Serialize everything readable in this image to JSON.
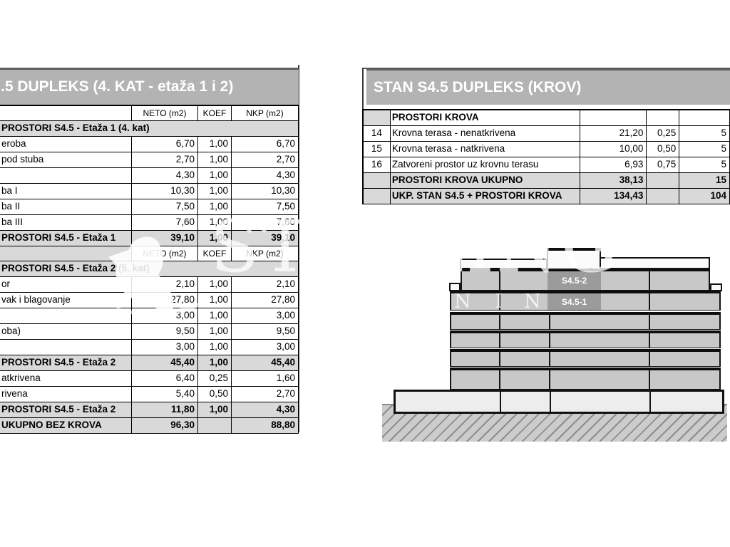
{
  "colors": {
    "title_bar_bg": "#b3b3b3",
    "title_text": "#ffffff",
    "row_gray": "#d9d9d9",
    "table_border": "#000000",
    "band_fill": "#c8c8c8",
    "unit_cell_fill": "#9b9b9b",
    "slab_fill": "#ededed",
    "watermark_white": "#ffffff"
  },
  "watermark": {
    "line1": "STARLING",
    "line2_letters": [
      "N",
      "I",
      "N"
    ],
    "logo": "bird-silhouette"
  },
  "left_table": {
    "title": ".5 DUPLEKS (4. KAT - etaža 1 i 2)",
    "rows": [
      {
        "t": "header",
        "c1": "",
        "c2": "NETO (m2)",
        "c3": "KOEF",
        "c4": "NKP (m2)"
      },
      {
        "t": "section",
        "label": "PROSTORI S4.5 - Etaža 1 (4. kat)"
      },
      {
        "t": "data",
        "label": "eroba",
        "neto": "6,70",
        "koef": "1,00",
        "nkp": "6,70"
      },
      {
        "t": "data",
        "label": "pod stuba",
        "neto": "2,70",
        "koef": "1,00",
        "nkp": "2,70"
      },
      {
        "t": "data",
        "label": "",
        "neto": "4,30",
        "koef": "1,00",
        "nkp": "4,30"
      },
      {
        "t": "data",
        "label": "ba I",
        "neto": "10,30",
        "koef": "1,00",
        "nkp": "10,30"
      },
      {
        "t": "data",
        "label": "ba II",
        "neto": "7,50",
        "koef": "1,00",
        "nkp": "7,50"
      },
      {
        "t": "data",
        "label": "ba III",
        "neto": "7,60",
        "koef": "1,00",
        "nkp": "7,60"
      },
      {
        "t": "summary",
        "label": "PROSTORI S4.5 - Etaža 1",
        "neto": "39,10",
        "koef": "1,00",
        "nkp": "39,10"
      },
      {
        "t": "header2",
        "c1": "",
        "c2": "NETO (m2)",
        "c3": "KOEF",
        "c4": "NKP (m2)"
      },
      {
        "t": "section",
        "label": "PROSTORI S4.5 - Etaža 2 (5. kat)"
      },
      {
        "t": "data",
        "label": "or",
        "neto": "2,10",
        "koef": "1,00",
        "nkp": "2,10"
      },
      {
        "t": "data",
        "label": "vak i blagovanje",
        "neto": "27,80",
        "koef": "1,00",
        "nkp": "27,80"
      },
      {
        "t": "data",
        "label": "",
        "neto": "3,00",
        "koef": "1,00",
        "nkp": "3,00"
      },
      {
        "t": "data",
        "label": "oba)",
        "neto": "9,50",
        "koef": "1,00",
        "nkp": "9,50"
      },
      {
        "t": "data",
        "label": "",
        "neto": "3,00",
        "koef": "1,00",
        "nkp": "3,00"
      },
      {
        "t": "summary",
        "label": "PROSTORI S4.5 - Etaža 2",
        "neto": "45,40",
        "koef": "1,00",
        "nkp": "45,40"
      },
      {
        "t": "data",
        "label": "atkrivena",
        "neto": "6,40",
        "koef": "0,25",
        "nkp": "1,60"
      },
      {
        "t": "data",
        "label": "rivena",
        "neto": "5,40",
        "koef": "0,50",
        "nkp": "2,70"
      },
      {
        "t": "summary",
        "label": "PROSTORI S4.5 - Etaža 2",
        "neto": "11,80",
        "koef": "1,00",
        "nkp": "4,30"
      },
      {
        "t": "total",
        "label": "UKUPNO BEZ KROVA",
        "neto": "96,30",
        "koef": "",
        "nkp": "88,80"
      }
    ]
  },
  "right_table": {
    "title": "STAN S4.5 DUPLEKS (KROV)",
    "rows": [
      {
        "t": "header",
        "num": "",
        "label": "PROSTORI KROVA",
        "neto": "",
        "koef": "",
        "nkp": ""
      },
      {
        "t": "data",
        "num": "14",
        "label": "Krovna terasa - nenatkrivena",
        "neto": "21,20",
        "koef": "0,25",
        "nkp": "5"
      },
      {
        "t": "data",
        "num": "15",
        "label": "Krovna terasa - natkrivena",
        "neto": "10,00",
        "koef": "0,50",
        "nkp": "5"
      },
      {
        "t": "data",
        "num": "16",
        "label": "Zatvoreni prostor uz krovnu terasu",
        "neto": "6,93",
        "koef": "0,75",
        "nkp": "5"
      },
      {
        "t": "summary",
        "num": "",
        "label": "PROSTORI KROVA UKUPNO",
        "neto": "38,13",
        "koef": "",
        "nkp": "15"
      },
      {
        "t": "total",
        "num": "",
        "label": "UKP. STAN S4.5 + PROSTORI KROVA",
        "neto": "134,43",
        "koef": "",
        "nkp": "104"
      }
    ]
  },
  "elevation": {
    "unit_labels": [
      "S4.5-2",
      "S4.5-1"
    ]
  }
}
